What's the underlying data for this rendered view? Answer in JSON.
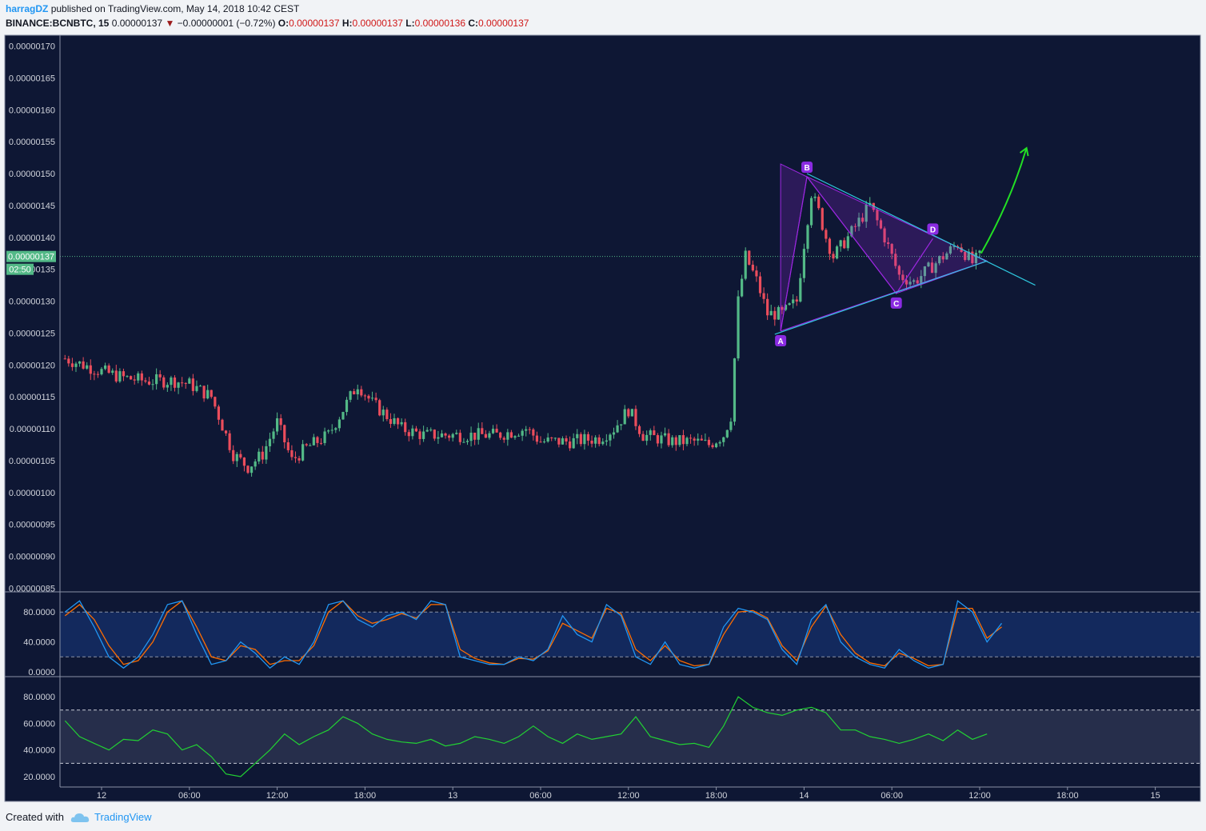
{
  "header": {
    "author": "harragDZ",
    "published": "published on TradingView.com, May 14, 2018 10:42 CEST",
    "symbol": "BINANCE:BCNBTC, 15",
    "last": "0.00000137",
    "change": "−0.00000001 (−0.72%)",
    "o_label": "O:",
    "o_value": "0.00000137",
    "h_label": "H:",
    "h_value": "0.00000137",
    "l_label": "L:",
    "l_value": "0.00000136",
    "c_label": "C:",
    "c_value": "0.00000137"
  },
  "footer": {
    "created_with": "Created with",
    "brand": "TradingView"
  },
  "colors": {
    "background": "#0e1734",
    "up": "#53b987",
    "down": "#eb4d5c",
    "pattern": "#9c27e0",
    "trend": "#2ec7dd",
    "arrow": "#22e024",
    "stoch_k": "#2196f3",
    "stoch_d": "#ff6d00",
    "rsi": "#22d133"
  },
  "chart_data": {
    "type": "candlestick",
    "price_axis": {
      "ylim": [
        8.5e-07,
        1.71e-06
      ],
      "ticks": [
        "0.00000170",
        "0.00000165",
        "0.00000160",
        "0.00000155",
        "0.00000150",
        "0.00000145",
        "0.00000140",
        "0.00000135",
        "0.00000130",
        "0.00000125",
        "0.00000120",
        "0.00000115",
        "0.00000110",
        "0.00000105",
        "0.00000100",
        "0.00000095",
        "0.00000090",
        "0.00000085"
      ],
      "tick_values": [
        170,
        165,
        160,
        155,
        150,
        145,
        140,
        135,
        130,
        125,
        120,
        115,
        110,
        105,
        100,
        95,
        90,
        85
      ],
      "current_price": "0.00000137",
      "countdown": "02:50"
    },
    "time_axis": {
      "labels": [
        "12",
        "06:00",
        "12:00",
        "18:00",
        "13",
        "06:00",
        "12:00",
        "18:00",
        "14",
        "06:00",
        "12:00",
        "18:00",
        "15"
      ],
      "hours": [
        0,
        6,
        12,
        18,
        24,
        30,
        36,
        42,
        48,
        54,
        60,
        66,
        72
      ]
    },
    "price_path_note": "values in units of 1e-8 BTC",
    "price_path": [
      [
        -2.5,
        121
      ],
      [
        0,
        119
      ],
      [
        1.5,
        118
      ],
      [
        3,
        117.5
      ],
      [
        5,
        117.5
      ],
      [
        6,
        117
      ],
      [
        7.5,
        115
      ],
      [
        9,
        106
      ],
      [
        10,
        104
      ],
      [
        11,
        106
      ],
      [
        12,
        111
      ],
      [
        13,
        105
      ],
      [
        14,
        107
      ],
      [
        15.5,
        109
      ],
      [
        16.5,
        113
      ],
      [
        17.5,
        117
      ],
      [
        18.5,
        114
      ],
      [
        19.5,
        112
      ],
      [
        20.5,
        110
      ],
      [
        22,
        109
      ],
      [
        25,
        109
      ],
      [
        27,
        109
      ],
      [
        29,
        110
      ],
      [
        30,
        108
      ],
      [
        32,
        108
      ],
      [
        34,
        108.5
      ],
      [
        35,
        110
      ],
      [
        36,
        113
      ],
      [
        37,
        109
      ],
      [
        39,
        108
      ],
      [
        40.5,
        108
      ],
      [
        41.5,
        107.5
      ],
      [
        42.5,
        109
      ],
      [
        43,
        112
      ],
      [
        43.5,
        130
      ],
      [
        44,
        137
      ],
      [
        44.8,
        133
      ],
      [
        45.5,
        128
      ],
      [
        46.5,
        128
      ],
      [
        47.5,
        130
      ],
      [
        48,
        139
      ],
      [
        48.5,
        147
      ],
      [
        49,
        144
      ],
      [
        49.5,
        140
      ],
      [
        50,
        137
      ],
      [
        51,
        140
      ],
      [
        52.5,
        145
      ],
      [
        53.5,
        140
      ],
      [
        54.5,
        134
      ],
      [
        55.5,
        133
      ],
      [
        56.5,
        135
      ],
      [
        57.5,
        137
      ],
      [
        58.5,
        139
      ],
      [
        59.5,
        136
      ],
      [
        60,
        137
      ]
    ],
    "pattern": {
      "labels": [
        "A",
        "B",
        "C",
        "D"
      ],
      "points": [
        [
          46.4,
          125.3
        ],
        [
          48.2,
          149.5
        ],
        [
          54.3,
          131.2
        ],
        [
          56.8,
          139.8
        ]
      ],
      "extra": [
        46.4,
        151.5
      ],
      "apex": [
        60.5,
        136.3
      ]
    },
    "trendlines": [
      {
        "from": [
          48.2,
          150
        ],
        "to": [
          63.8,
          132.5
        ]
      },
      {
        "from": [
          46.0,
          124.8
        ],
        "to": [
          60.5,
          136.3
        ]
      }
    ],
    "arrow": {
      "from": [
        60.1,
        137.5
      ],
      "to": [
        63.2,
        154
      ]
    },
    "stoch": {
      "ticks": [
        "80.0000",
        "40.0000",
        "0.0000"
      ],
      "tick_values": [
        80,
        40,
        0
      ],
      "bands": [
        80,
        20
      ],
      "ylim": [
        -2,
        100
      ],
      "k": [
        [
          -2.5,
          80
        ],
        [
          -1.5,
          95
        ],
        [
          -0.5,
          60
        ],
        [
          0.5,
          20
        ],
        [
          1.5,
          5
        ],
        [
          2.5,
          20
        ],
        [
          3.5,
          50
        ],
        [
          4.5,
          90
        ],
        [
          5.5,
          95
        ],
        [
          6.5,
          50
        ],
        [
          7.5,
          10
        ],
        [
          8.5,
          15
        ],
        [
          9.5,
          40
        ],
        [
          10.5,
          25
        ],
        [
          11.5,
          5
        ],
        [
          12.5,
          20
        ],
        [
          13.5,
          10
        ],
        [
          14.5,
          40
        ],
        [
          15.5,
          90
        ],
        [
          16.5,
          95
        ],
        [
          17.5,
          70
        ],
        [
          18.5,
          60
        ],
        [
          19.5,
          75
        ],
        [
          20.5,
          80
        ],
        [
          21.5,
          70
        ],
        [
          22.5,
          95
        ],
        [
          23.5,
          90
        ],
        [
          24.5,
          20
        ],
        [
          25.5,
          15
        ],
        [
          26.5,
          10
        ],
        [
          27.5,
          10
        ],
        [
          28.5,
          20
        ],
        [
          29.5,
          15
        ],
        [
          30.5,
          30
        ],
        [
          31.5,
          75
        ],
        [
          32.5,
          50
        ],
        [
          33.5,
          40
        ],
        [
          34.5,
          90
        ],
        [
          35.5,
          75
        ],
        [
          36.5,
          20
        ],
        [
          37.5,
          10
        ],
        [
          38.5,
          40
        ],
        [
          39.5,
          10
        ],
        [
          40.5,
          5
        ],
        [
          41.5,
          10
        ],
        [
          42.5,
          60
        ],
        [
          43.5,
          85
        ],
        [
          44.5,
          80
        ],
        [
          45.5,
          70
        ],
        [
          46.5,
          30
        ],
        [
          47.5,
          10
        ],
        [
          48.5,
          70
        ],
        [
          49.5,
          90
        ],
        [
          50.5,
          40
        ],
        [
          51.5,
          20
        ],
        [
          52.5,
          10
        ],
        [
          53.5,
          5
        ],
        [
          54.5,
          30
        ],
        [
          55.5,
          15
        ],
        [
          56.5,
          5
        ],
        [
          57.5,
          10
        ],
        [
          58.5,
          95
        ],
        [
          59.5,
          80
        ],
        [
          60.5,
          40
        ],
        [
          61.5,
          65
        ]
      ],
      "d": [
        [
          -2.5,
          75
        ],
        [
          -1.5,
          90
        ],
        [
          -0.5,
          70
        ],
        [
          0.5,
          35
        ],
        [
          1.5,
          10
        ],
        [
          2.5,
          15
        ],
        [
          3.5,
          40
        ],
        [
          4.5,
          80
        ],
        [
          5.5,
          95
        ],
        [
          6.5,
          60
        ],
        [
          7.5,
          20
        ],
        [
          8.5,
          15
        ],
        [
          9.5,
          35
        ],
        [
          10.5,
          30
        ],
        [
          11.5,
          10
        ],
        [
          12.5,
          15
        ],
        [
          13.5,
          15
        ],
        [
          14.5,
          35
        ],
        [
          15.5,
          80
        ],
        [
          16.5,
          95
        ],
        [
          17.5,
          75
        ],
        [
          18.5,
          65
        ],
        [
          19.5,
          70
        ],
        [
          20.5,
          78
        ],
        [
          21.5,
          72
        ],
        [
          22.5,
          90
        ],
        [
          23.5,
          90
        ],
        [
          24.5,
          30
        ],
        [
          25.5,
          18
        ],
        [
          26.5,
          12
        ],
        [
          27.5,
          10
        ],
        [
          28.5,
          18
        ],
        [
          29.5,
          17
        ],
        [
          30.5,
          28
        ],
        [
          31.5,
          65
        ],
        [
          32.5,
          55
        ],
        [
          33.5,
          45
        ],
        [
          34.5,
          85
        ],
        [
          35.5,
          78
        ],
        [
          36.5,
          30
        ],
        [
          37.5,
          15
        ],
        [
          38.5,
          35
        ],
        [
          39.5,
          15
        ],
        [
          40.5,
          8
        ],
        [
          41.5,
          10
        ],
        [
          42.5,
          50
        ],
        [
          43.5,
          80
        ],
        [
          44.5,
          82
        ],
        [
          45.5,
          72
        ],
        [
          46.5,
          35
        ],
        [
          47.5,
          15
        ],
        [
          48.5,
          60
        ],
        [
          49.5,
          88
        ],
        [
          50.5,
          50
        ],
        [
          51.5,
          25
        ],
        [
          52.5,
          12
        ],
        [
          53.5,
          8
        ],
        [
          54.5,
          25
        ],
        [
          55.5,
          18
        ],
        [
          56.5,
          8
        ],
        [
          57.5,
          10
        ],
        [
          58.5,
          85
        ],
        [
          59.5,
          85
        ],
        [
          60.5,
          45
        ],
        [
          61.5,
          60
        ]
      ]
    },
    "rsi": {
      "ticks": [
        "80.0000",
        "60.0000",
        "40.0000",
        "20.0000"
      ],
      "tick_values": [
        80,
        60,
        40,
        20
      ],
      "bands": [
        70,
        30
      ],
      "ylim": [
        14,
        92
      ],
      "values": [
        [
          -2.5,
          62
        ],
        [
          -1.5,
          50
        ],
        [
          -0.5,
          45
        ],
        [
          0.5,
          40
        ],
        [
          1.5,
          48
        ],
        [
          2.5,
          47
        ],
        [
          3.5,
          55
        ],
        [
          4.5,
          52
        ],
        [
          5.5,
          40
        ],
        [
          6.5,
          44
        ],
        [
          7.5,
          35
        ],
        [
          8.5,
          22
        ],
        [
          9.5,
          20
        ],
        [
          10.5,
          30
        ],
        [
          11.5,
          40
        ],
        [
          12.5,
          52
        ],
        [
          13.5,
          44
        ],
        [
          14.5,
          50
        ],
        [
          15.5,
          55
        ],
        [
          16.5,
          65
        ],
        [
          17.5,
          60
        ],
        [
          18.5,
          52
        ],
        [
          19.5,
          48
        ],
        [
          20.5,
          46
        ],
        [
          21.5,
          45
        ],
        [
          22.5,
          48
        ],
        [
          23.5,
          43
        ],
        [
          24.5,
          45
        ],
        [
          25.5,
          50
        ],
        [
          26.5,
          48
        ],
        [
          27.5,
          45
        ],
        [
          28.5,
          50
        ],
        [
          29.5,
          58
        ],
        [
          30.5,
          50
        ],
        [
          31.5,
          45
        ],
        [
          32.5,
          52
        ],
        [
          33.5,
          48
        ],
        [
          34.5,
          50
        ],
        [
          35.5,
          52
        ],
        [
          36.5,
          65
        ],
        [
          37.5,
          50
        ],
        [
          38.5,
          47
        ],
        [
          39.5,
          44
        ],
        [
          40.5,
          45
        ],
        [
          41.5,
          42
        ],
        [
          42.5,
          58
        ],
        [
          43.5,
          80
        ],
        [
          44.5,
          72
        ],
        [
          45.5,
          68
        ],
        [
          46.5,
          66
        ],
        [
          47.5,
          70
        ],
        [
          48.5,
          72
        ],
        [
          49.5,
          68
        ],
        [
          50.5,
          55
        ],
        [
          51.5,
          55
        ],
        [
          52.5,
          50
        ],
        [
          53.5,
          48
        ],
        [
          54.5,
          45
        ],
        [
          55.5,
          48
        ],
        [
          56.5,
          52
        ],
        [
          57.5,
          47
        ],
        [
          58.5,
          55
        ],
        [
          59.5,
          48
        ],
        [
          60.5,
          52
        ]
      ]
    }
  }
}
